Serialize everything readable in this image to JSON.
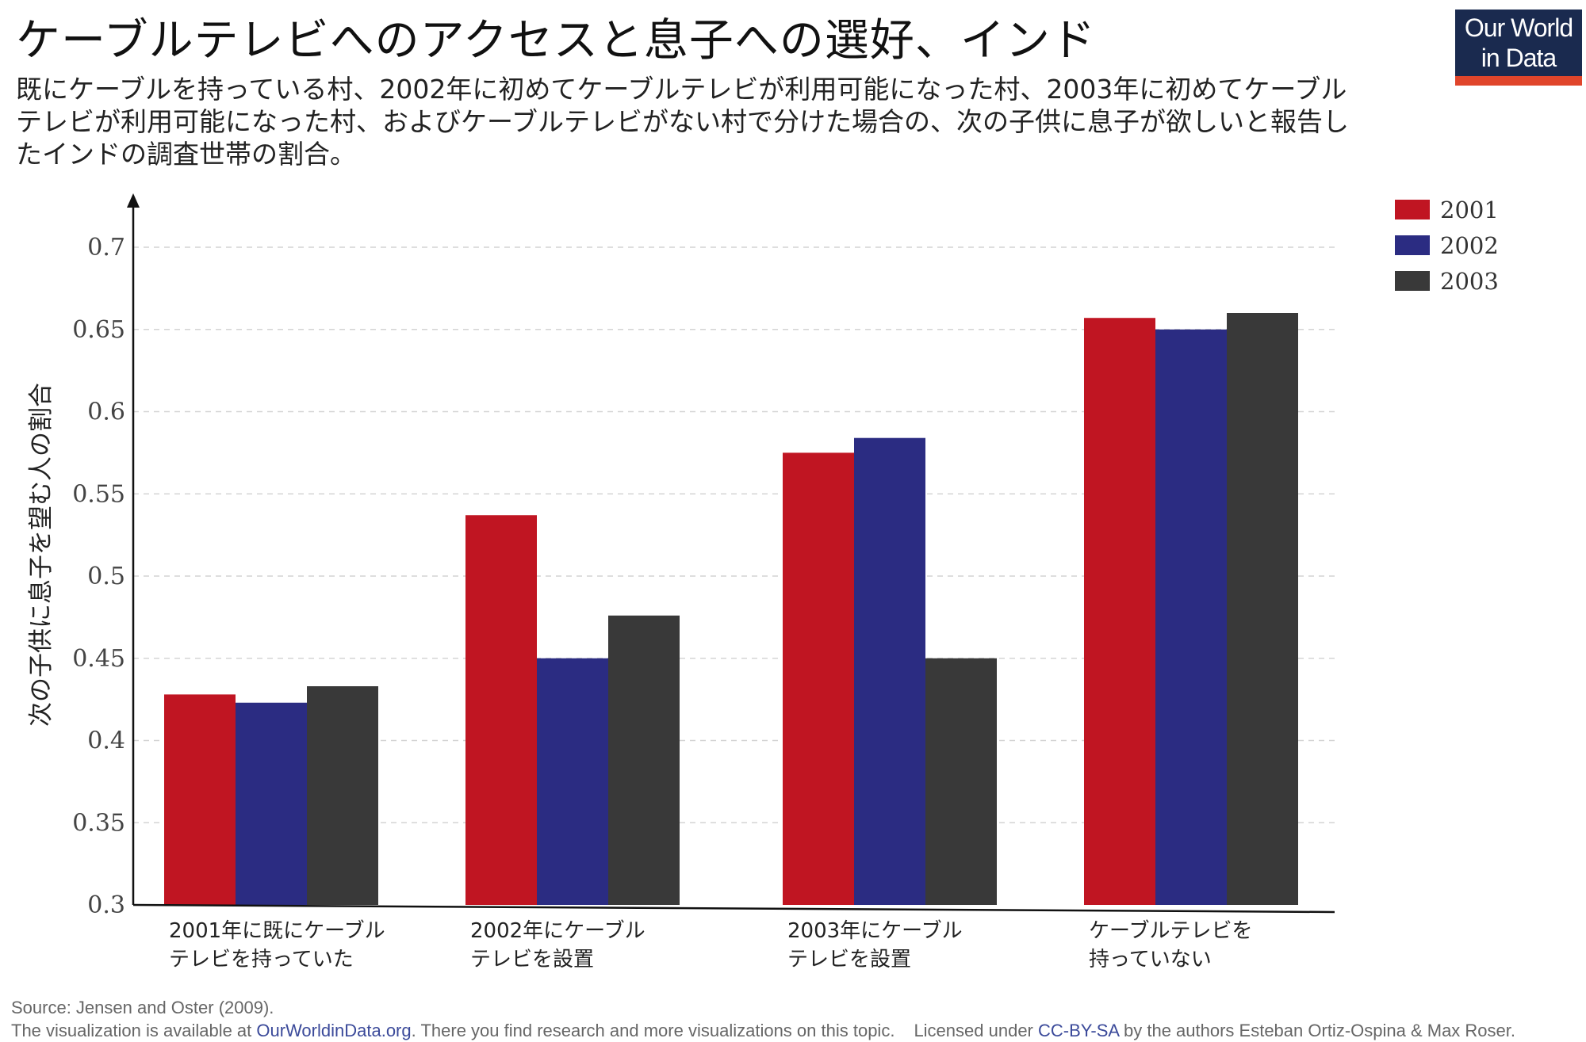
{
  "title": "ケーブルテレビへのアクセスと息子への選好、インド",
  "subtitle": "既にケーブルを持っている村、2002年に初めてケーブルテレビが利用可能になった村、2003年に初めてケーブルテレビが利用可能になった村、およびケーブルテレビがない村で分けた場合の、次の子供に息子が欲しいと報告したインドの調査世帯の割合。",
  "logo": {
    "line1": "Our World",
    "line2": "in Data"
  },
  "footer": {
    "source": "Source: Jensen and Oster (2009).",
    "vis_prefix": "The visualization is available at ",
    "vis_link": "OurWorldinData.org",
    "vis_suffix": ". There you find research and more visualizations on this topic.",
    "license_prefix": "Licensed under ",
    "license_link": "CC-BY-SA",
    "license_suffix": " by the authors Esteban Ortiz-Ospina & Max Roser."
  },
  "chart_data": {
    "type": "bar",
    "title": "ケーブルテレビへのアクセスと息子への選好、インド",
    "ylabel": "次の子供に息子を望む人の割合",
    "xlabel": "",
    "ylim": [
      0.3,
      0.7
    ],
    "yticks": [
      "0.3",
      "0.35",
      "0.4",
      "0.45",
      "0.5",
      "0.55",
      "0.6",
      "0.65",
      "0.7"
    ],
    "grid": true,
    "legend_position": "top-right",
    "categories": [
      [
        "2001年に既にケーブル",
        "テレビを持っていた"
      ],
      [
        "2002年にケーブル",
        "テレビを設置"
      ],
      [
        "2003年にケーブル",
        "テレビを設置"
      ],
      [
        "ケーブルテレビを",
        "持っていない"
      ]
    ],
    "series": [
      {
        "name": "2001",
        "color": "#c01522",
        "values": [
          0.428,
          0.537,
          0.575,
          0.657
        ]
      },
      {
        "name": "2002",
        "color": "#2b2c82",
        "values": [
          0.423,
          0.45,
          0.584,
          0.65
        ]
      },
      {
        "name": "2003",
        "color": "#393939",
        "values": [
          0.433,
          0.476,
          0.45,
          0.66
        ]
      }
    ]
  }
}
